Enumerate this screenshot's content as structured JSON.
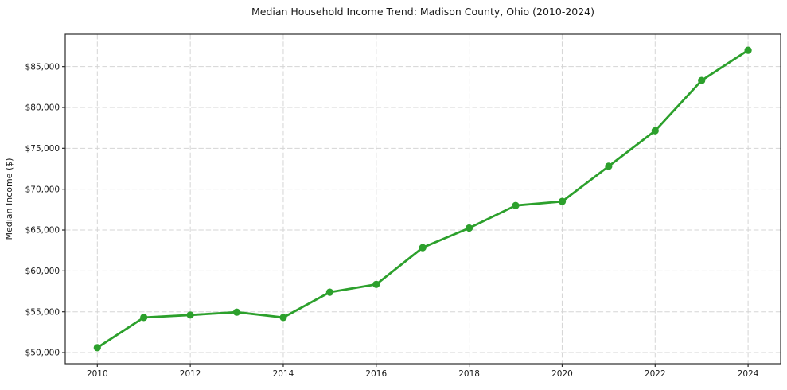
{
  "chart_data": {
    "type": "line",
    "title": "Median Household Income Trend: Madison County, Ohio (2010-2024)",
    "xlabel": "",
    "ylabel": "Median Income ($)",
    "series": [
      {
        "name": "Median Household Income",
        "x": [
          2010,
          2011,
          2012,
          2013,
          2014,
          2015,
          2016,
          2017,
          2018,
          2019,
          2020,
          2021,
          2022,
          2023,
          2024
        ],
        "y": [
          50600,
          54300,
          54600,
          54950,
          54300,
          57400,
          58350,
          62850,
          65250,
          68000,
          68500,
          72800,
          77150,
          83300,
          87000
        ]
      }
    ],
    "x_ticks": [
      {
        "value": 2010,
        "label": "2010"
      },
      {
        "value": 2012,
        "label": "2012"
      },
      {
        "value": 2014,
        "label": "2014"
      },
      {
        "value": 2016,
        "label": "2016"
      },
      {
        "value": 2018,
        "label": "2018"
      },
      {
        "value": 2020,
        "label": "2020"
      },
      {
        "value": 2022,
        "label": "2022"
      },
      {
        "value": 2024,
        "label": "2024"
      }
    ],
    "y_ticks": [
      {
        "value": 50000,
        "label": "$50,000"
      },
      {
        "value": 55000,
        "label": "$55,000"
      },
      {
        "value": 60000,
        "label": "$60,000"
      },
      {
        "value": 65000,
        "label": "$65,000"
      },
      {
        "value": 70000,
        "label": "$70,000"
      },
      {
        "value": 75000,
        "label": "$75,000"
      },
      {
        "value": 80000,
        "label": "$80,000"
      },
      {
        "value": 85000,
        "label": "$85,000"
      }
    ],
    "xlim": [
      2009.31,
      2024.7
    ],
    "ylim": [
      48640,
      88960
    ],
    "grid": true,
    "legend": "none",
    "line_color": "#2ca02c",
    "grid_color": "#d5d5d5",
    "spine_color": "#2b2b2b"
  }
}
